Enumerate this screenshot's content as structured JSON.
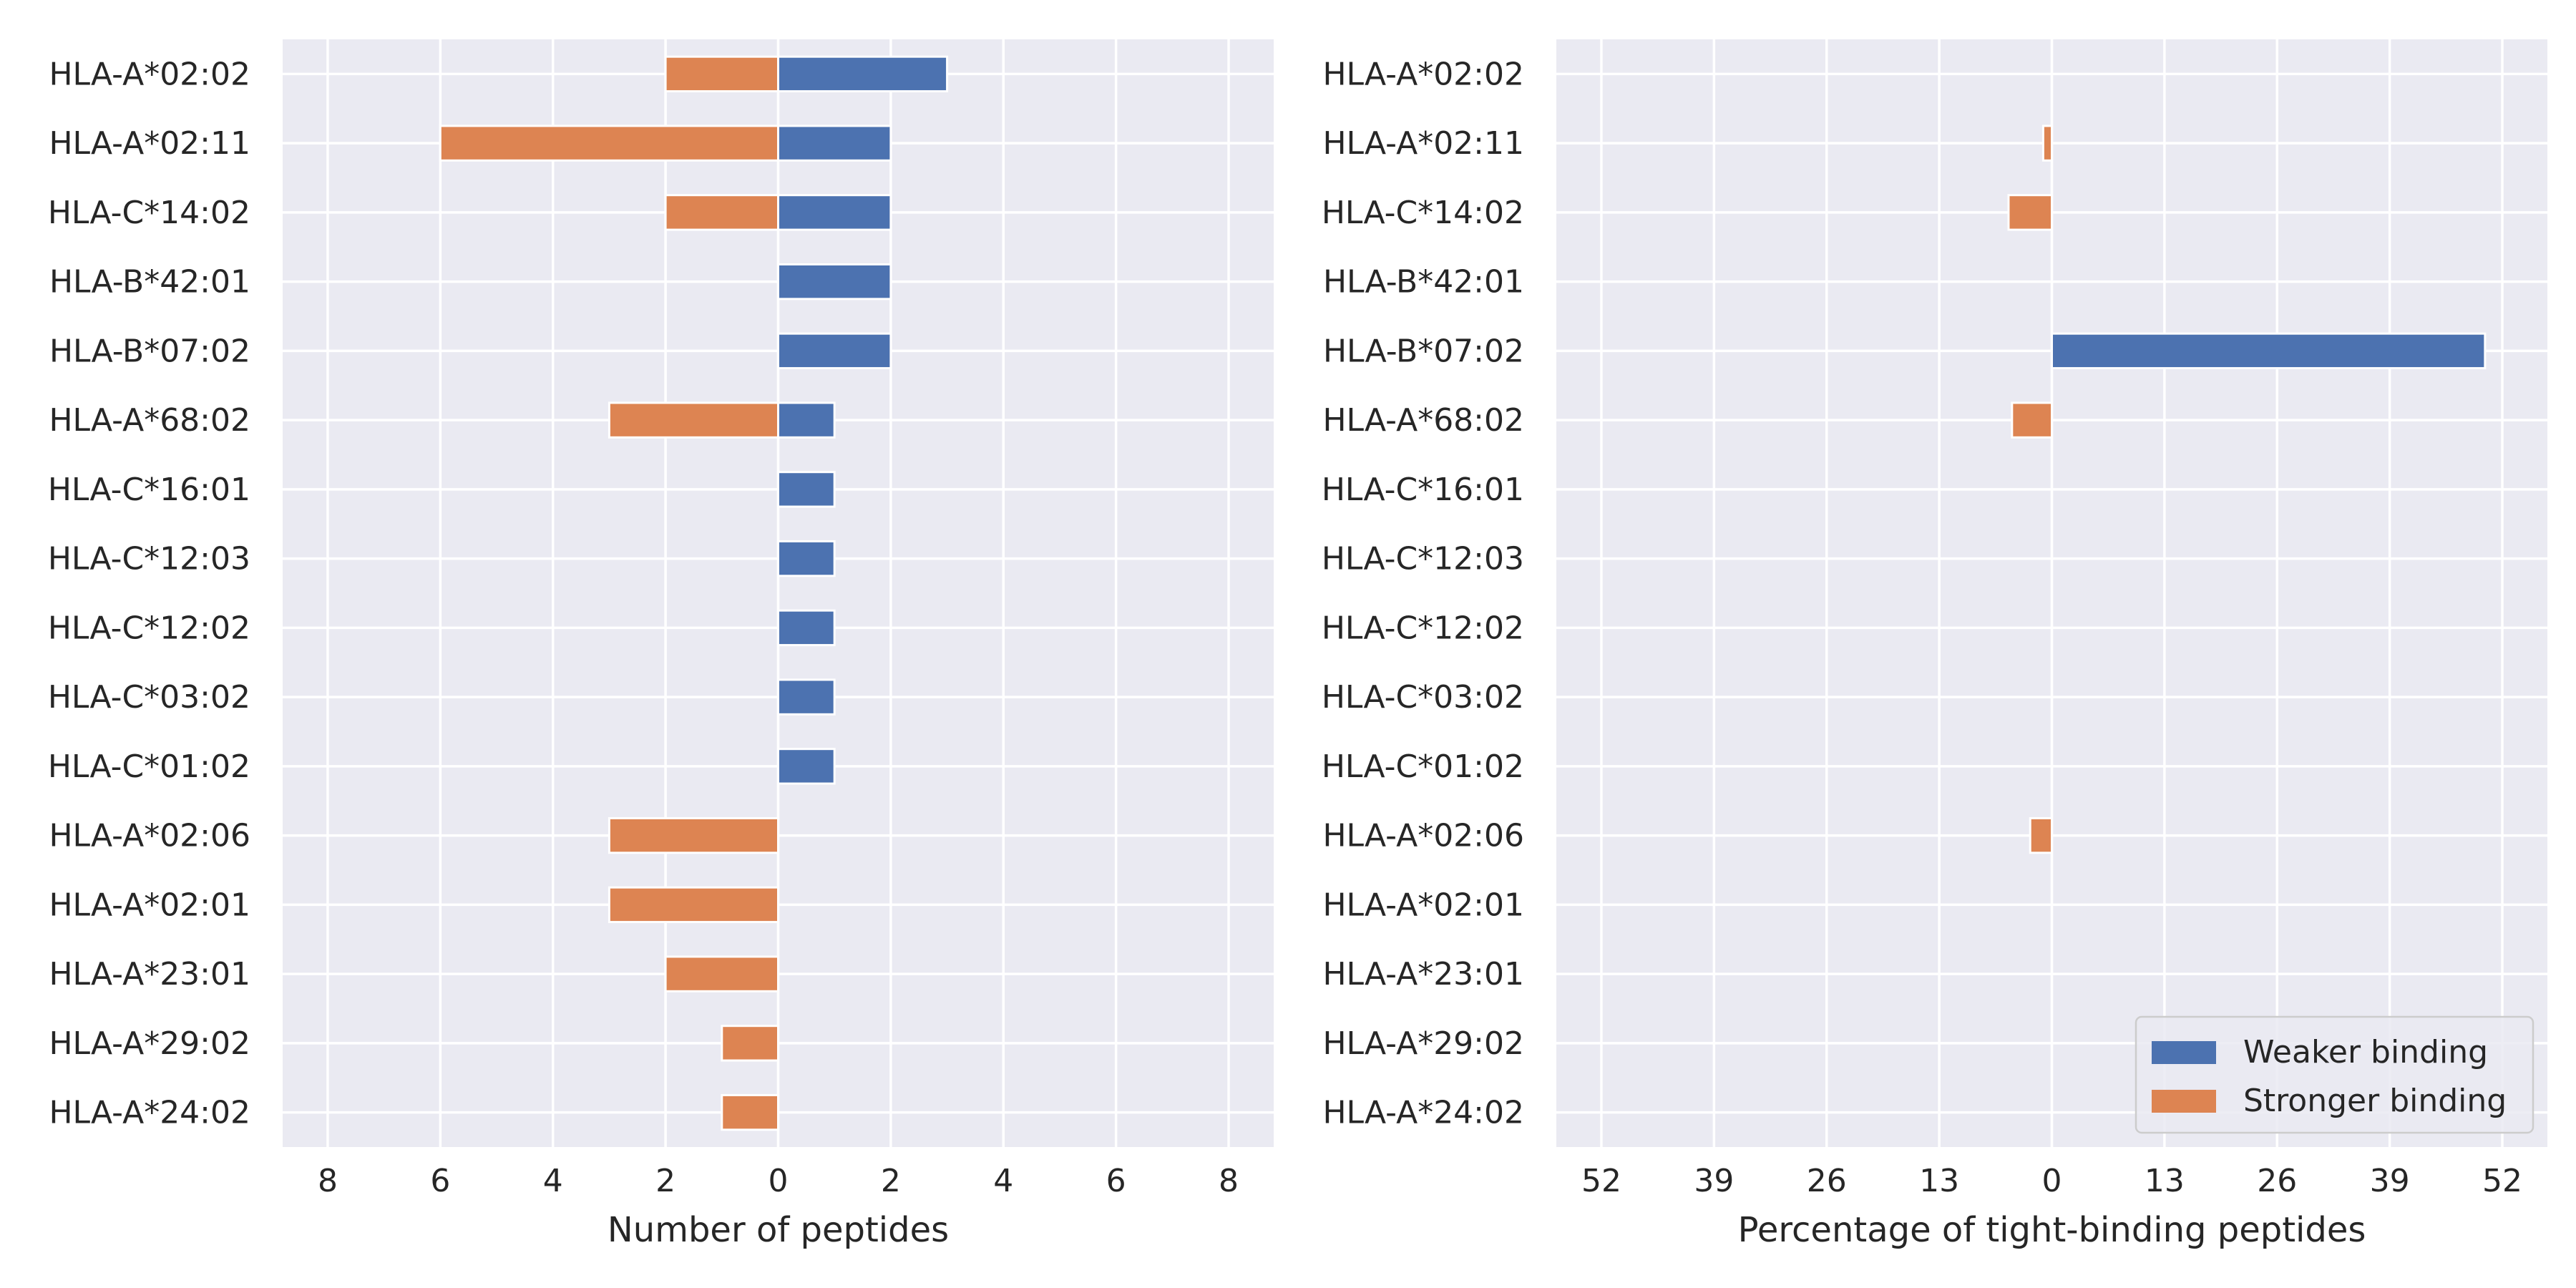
{
  "chart_data": [
    {
      "type": "bar",
      "orientation": "horizontal",
      "diverging": true,
      "xlabel": "Number of peptides",
      "ylabel": "",
      "xlim": [
        -8.8,
        8.8
      ],
      "xticks": [
        -8,
        -6,
        -4,
        -2,
        0,
        2,
        4,
        6,
        8
      ],
      "xtick_labels": [
        "8",
        "6",
        "4",
        "2",
        "0",
        "2",
        "4",
        "6",
        "8"
      ],
      "grid": true,
      "categories": [
        "HLA-A*02:02",
        "HLA-A*02:11",
        "HLA-C*14:02",
        "HLA-B*42:01",
        "HLA-B*07:02",
        "HLA-A*68:02",
        "HLA-C*16:01",
        "HLA-C*12:03",
        "HLA-C*12:02",
        "HLA-C*03:02",
        "HLA-C*01:02",
        "HLA-A*02:06",
        "HLA-A*02:01",
        "HLA-A*23:01",
        "HLA-A*29:02",
        "HLA-A*24:02"
      ],
      "series": [
        {
          "name": "Weaker binding",
          "color": "#4c72b0",
          "direction": "right",
          "values": [
            3,
            2,
            2,
            2,
            2,
            1,
            1,
            1,
            1,
            1,
            1,
            0,
            0,
            0,
            0,
            0
          ]
        },
        {
          "name": "Stronger binding",
          "color": "#dd8452",
          "direction": "left",
          "values": [
            2,
            6,
            2,
            0,
            0,
            3,
            0,
            0,
            0,
            0,
            0,
            3,
            3,
            2,
            1,
            1
          ]
        }
      ]
    },
    {
      "type": "bar",
      "orientation": "horizontal",
      "diverging": true,
      "xlabel": "Percentage of tight-binding peptides",
      "ylabel": "",
      "xlim": [
        -57.2,
        57.2
      ],
      "xticks": [
        -52,
        -39,
        -26,
        -13,
        0,
        13,
        26,
        39,
        52
      ],
      "xtick_labels": [
        "52",
        "39",
        "26",
        "13",
        "0",
        "13",
        "26",
        "39",
        "52"
      ],
      "grid": true,
      "legend_position": "bottom-right",
      "categories": [
        "HLA-A*02:02",
        "HLA-A*02:11",
        "HLA-C*14:02",
        "HLA-B*42:01",
        "HLA-B*07:02",
        "HLA-A*68:02",
        "HLA-C*16:01",
        "HLA-C*12:03",
        "HLA-C*12:02",
        "HLA-C*03:02",
        "HLA-C*01:02",
        "HLA-A*02:06",
        "HLA-A*02:01",
        "HLA-A*23:01",
        "HLA-A*29:02",
        "HLA-A*24:02"
      ],
      "series": [
        {
          "name": "Weaker binding",
          "color": "#4c72b0",
          "direction": "right",
          "values": [
            0,
            0,
            0,
            0,
            50,
            0,
            0,
            0,
            0,
            0,
            0,
            0,
            0,
            0,
            0,
            0
          ]
        },
        {
          "name": "Stronger binding",
          "color": "#dd8452",
          "direction": "left",
          "values": [
            0,
            1,
            5,
            0,
            0,
            4.6,
            0,
            0,
            0,
            0,
            0,
            2.5,
            0,
            0,
            0,
            0
          ]
        }
      ]
    }
  ],
  "style": {
    "plot_background": "#eaeaf2",
    "grid_color": "#ffffff",
    "text_color": "#262626"
  }
}
